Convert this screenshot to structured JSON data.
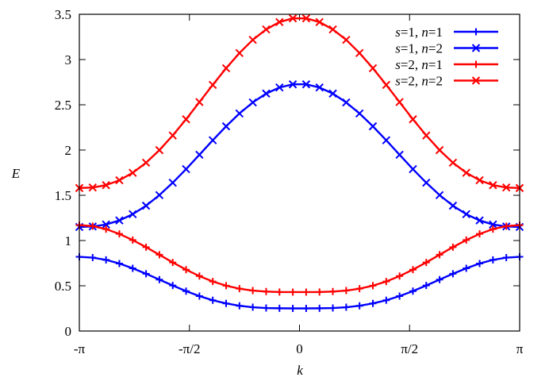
{
  "chart_data": {
    "type": "line",
    "xlabel": "k",
    "ylabel": "E",
    "xlim": [
      -3.1416,
      3.1416
    ],
    "ylim": [
      0,
      3.5
    ],
    "x_ticks": [
      {
        "value": -3.1416,
        "label": "-π"
      },
      {
        "value": -1.5708,
        "label": "-π/2"
      },
      {
        "value": 0,
        "label": "0"
      },
      {
        "value": 1.5708,
        "label": "π/2"
      },
      {
        "value": 3.1416,
        "label": "π"
      }
    ],
    "y_ticks": [
      {
        "value": 0,
        "label": "0"
      },
      {
        "value": 0.5,
        "label": "0.5"
      },
      {
        "value": 1,
        "label": "1"
      },
      {
        "value": 1.5,
        "label": "1.5"
      },
      {
        "value": 2,
        "label": "2"
      },
      {
        "value": 2.5,
        "label": "2.5"
      },
      {
        "value": 3,
        "label": "3"
      },
      {
        "value": 3.5,
        "label": "3.5"
      }
    ],
    "grid": false,
    "legend_position": "top-right",
    "x": [
      -3.1416,
      -2.9512,
      -2.7608,
      -2.5704,
      -2.38,
      -2.1896,
      -1.9992,
      -1.8088,
      -1.6184,
      -1.428,
      -1.2376,
      -1.0472,
      -0.8568,
      -0.6664,
      -0.476,
      -0.2856,
      -0.0952,
      0.0952,
      0.2856,
      0.476,
      0.6664,
      0.8568,
      1.0472,
      1.2376,
      1.428,
      1.6184,
      1.8088,
      1.9992,
      2.1896,
      2.38,
      2.5704,
      2.7608,
      2.9512,
      3.1416
    ],
    "series": [
      {
        "name_s": "s",
        "s": "1",
        "name_n": "n",
        "n": "1",
        "color": "#0000ff",
        "marker": "plus",
        "values": [
          0.82,
          0.811,
          0.786,
          0.746,
          0.693,
          0.633,
          0.568,
          0.503,
          0.441,
          0.386,
          0.34,
          0.305,
          0.279,
          0.263,
          0.254,
          0.251,
          0.25,
          0.25,
          0.251,
          0.254,
          0.263,
          0.279,
          0.305,
          0.34,
          0.386,
          0.441,
          0.503,
          0.568,
          0.633,
          0.693,
          0.746,
          0.786,
          0.811,
          0.82
        ]
      },
      {
        "name_s": "s",
        "s": "1",
        "name_n": "n",
        "n": "2",
        "color": "#0000ff",
        "marker": "cross",
        "values": [
          1.15,
          1.155,
          1.177,
          1.222,
          1.291,
          1.385,
          1.502,
          1.639,
          1.789,
          1.948,
          2.108,
          2.262,
          2.404,
          2.526,
          2.624,
          2.691,
          2.726,
          2.726,
          2.691,
          2.624,
          2.526,
          2.404,
          2.262,
          2.108,
          1.948,
          1.789,
          1.639,
          1.502,
          1.385,
          1.291,
          1.222,
          1.177,
          1.155,
          1.15
        ]
      },
      {
        "name_s": "s",
        "s": "2",
        "name_n": "n",
        "n": "1",
        "color": "#ff0000",
        "marker": "plus",
        "values": [
          1.17,
          1.159,
          1.126,
          1.073,
          1.005,
          0.927,
          0.843,
          0.758,
          0.678,
          0.607,
          0.547,
          0.501,
          0.468,
          0.447,
          0.436,
          0.431,
          0.43,
          0.43,
          0.431,
          0.436,
          0.447,
          0.468,
          0.501,
          0.547,
          0.607,
          0.678,
          0.758,
          0.843,
          0.927,
          1.005,
          1.073,
          1.126,
          1.159,
          1.17
        ]
      },
      {
        "name_s": "s",
        "s": "2",
        "name_n": "n",
        "n": "2",
        "color": "#ff0000",
        "marker": "cross",
        "values": [
          1.58,
          1.586,
          1.612,
          1.666,
          1.748,
          1.86,
          1.999,
          2.161,
          2.34,
          2.53,
          2.72,
          2.904,
          3.072,
          3.218,
          3.333,
          3.414,
          3.455,
          3.455,
          3.414,
          3.333,
          3.218,
          3.072,
          2.904,
          2.72,
          2.53,
          2.34,
          2.161,
          1.999,
          1.86,
          1.748,
          1.666,
          1.612,
          1.586,
          1.58
        ]
      }
    ]
  }
}
